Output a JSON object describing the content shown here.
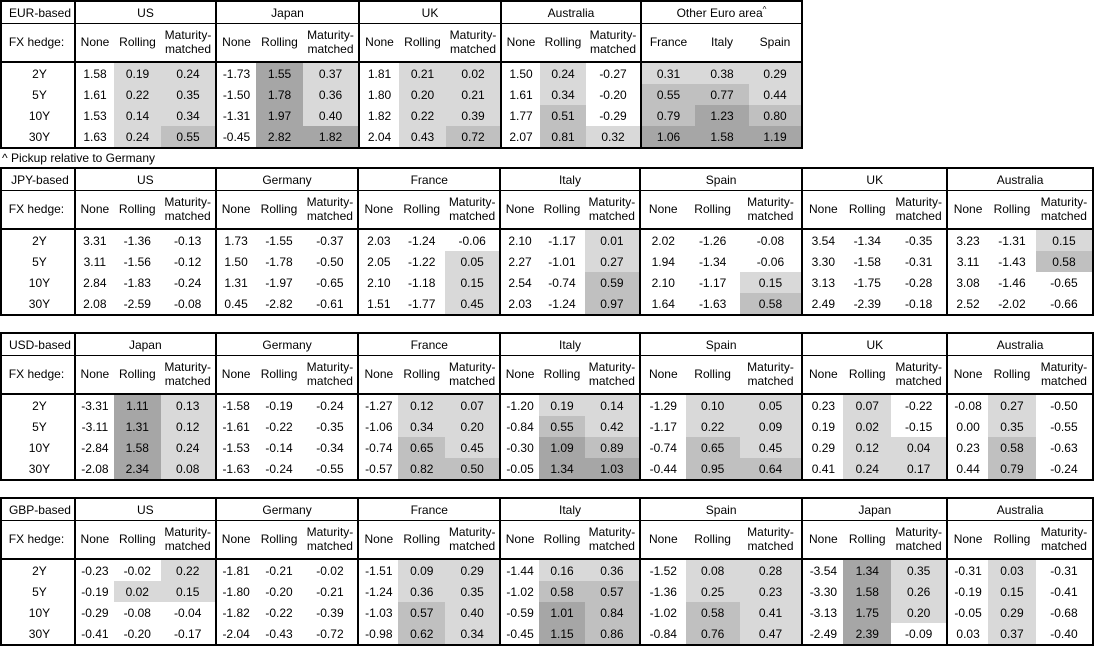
{
  "footnote": "^ Pickup relative to Germany",
  "fx_hedge_label": "FX hedge:",
  "hedge_columns": [
    "None",
    "Rolling",
    "Maturity-matched"
  ],
  "tenors": [
    "2Y",
    "5Y",
    "10Y",
    "30Y"
  ],
  "shading": {
    "none": "#FFFFFF",
    "light": "#D9D9D9",
    "medium": "#C0C0C0",
    "dark": "#A6A6A6",
    "rule": "hedged/pickup columns only: value<=0 white, 0<v<0.5 light, 0.5<=v<1 medium, v>=1 dark"
  },
  "tables": [
    {
      "base": "EUR-based",
      "sections": [
        {
          "country": "US",
          "type": "hedge",
          "rows": [
            [
              1.58,
              0.19,
              0.24
            ],
            [
              1.61,
              0.22,
              0.35
            ],
            [
              1.53,
              0.14,
              0.34
            ],
            [
              1.63,
              0.24,
              0.55
            ]
          ]
        },
        {
          "country": "Japan",
          "type": "hedge",
          "rows": [
            [
              -1.73,
              1.55,
              0.37
            ],
            [
              -1.5,
              1.78,
              0.36
            ],
            [
              -1.31,
              1.97,
              0.4
            ],
            [
              -0.45,
              2.82,
              1.82
            ]
          ]
        },
        {
          "country": "UK",
          "type": "hedge",
          "rows": [
            [
              1.81,
              0.21,
              0.02
            ],
            [
              1.8,
              0.2,
              0.21
            ],
            [
              1.82,
              0.22,
              0.39
            ],
            [
              2.04,
              0.43,
              0.72
            ]
          ]
        },
        {
          "country": "Australia",
          "type": "hedge",
          "rows": [
            [
              1.5,
              0.24,
              -0.27
            ],
            [
              1.61,
              0.34,
              -0.2
            ],
            [
              1.77,
              0.51,
              -0.29
            ],
            [
              2.07,
              0.81,
              0.32
            ]
          ]
        },
        {
          "country": "Other Euro area",
          "sup": "^",
          "type": "pickup",
          "subcols": [
            "France",
            "Italy",
            "Spain"
          ],
          "rows": [
            [
              0.31,
              0.38,
              0.29
            ],
            [
              0.55,
              0.77,
              0.44
            ],
            [
              0.79,
              1.23,
              0.8
            ],
            [
              1.06,
              1.58,
              1.19
            ]
          ]
        }
      ]
    },
    {
      "base": "JPY-based",
      "sections": [
        {
          "country": "US",
          "type": "hedge",
          "rows": [
            [
              3.31,
              -1.36,
              -0.13
            ],
            [
              3.11,
              -1.56,
              -0.12
            ],
            [
              2.84,
              -1.83,
              -0.24
            ],
            [
              2.08,
              -2.59,
              -0.08
            ]
          ]
        },
        {
          "country": "Germany",
          "type": "hedge",
          "rows": [
            [
              1.73,
              -1.55,
              -0.37
            ],
            [
              1.5,
              -1.78,
              -0.5
            ],
            [
              1.31,
              -1.97,
              -0.65
            ],
            [
              0.45,
              -2.82,
              -0.61
            ]
          ]
        },
        {
          "country": "France",
          "type": "hedge",
          "rows": [
            [
              2.03,
              -1.24,
              -0.06
            ],
            [
              2.05,
              -1.22,
              0.05
            ],
            [
              2.1,
              -1.18,
              0.15
            ],
            [
              1.51,
              -1.77,
              0.45
            ]
          ]
        },
        {
          "country": "Italy",
          "type": "hedge",
          "rows": [
            [
              2.1,
              -1.17,
              0.01
            ],
            [
              2.27,
              -1.01,
              0.27
            ],
            [
              2.54,
              -0.74,
              0.59
            ],
            [
              2.03,
              -1.24,
              0.97
            ]
          ]
        },
        {
          "country": "Spain",
          "type": "hedge",
          "rows": [
            [
              2.02,
              -1.26,
              -0.08
            ],
            [
              1.94,
              -1.34,
              -0.06
            ],
            [
              2.1,
              -1.17,
              0.15
            ],
            [
              1.64,
              -1.63,
              0.58
            ]
          ]
        },
        {
          "country": "UK",
          "type": "hedge",
          "rows": [
            [
              3.54,
              -1.34,
              -0.35
            ],
            [
              3.3,
              -1.58,
              -0.31
            ],
            [
              3.13,
              -1.75,
              -0.28
            ],
            [
              2.49,
              -2.39,
              -0.18
            ]
          ]
        },
        {
          "country": "Australia",
          "type": "hedge",
          "rows": [
            [
              3.23,
              -1.31,
              0.15
            ],
            [
              3.11,
              -1.43,
              0.58
            ],
            [
              3.08,
              -1.46,
              -0.65
            ],
            [
              2.52,
              -2.02,
              -0.66
            ]
          ]
        }
      ]
    },
    {
      "base": "USD-based",
      "sections": [
        {
          "country": "Japan",
          "type": "hedge",
          "rows": [
            [
              -3.31,
              1.11,
              0.13
            ],
            [
              -3.11,
              1.31,
              0.12
            ],
            [
              -2.84,
              1.58,
              0.24
            ],
            [
              -2.08,
              2.34,
              0.08
            ]
          ]
        },
        {
          "country": "Germany",
          "type": "hedge",
          "rows": [
            [
              -1.58,
              -0.19,
              -0.24
            ],
            [
              -1.61,
              -0.22,
              -0.35
            ],
            [
              -1.53,
              -0.14,
              -0.34
            ],
            [
              -1.63,
              -0.24,
              -0.55
            ]
          ]
        },
        {
          "country": "France",
          "type": "hedge",
          "rows": [
            [
              -1.27,
              0.12,
              0.07
            ],
            [
              -1.06,
              0.34,
              0.2
            ],
            [
              -0.74,
              0.65,
              0.45
            ],
            [
              -0.57,
              0.82,
              0.5
            ]
          ]
        },
        {
          "country": "Italy",
          "type": "hedge",
          "rows": [
            [
              -1.2,
              0.19,
              0.14
            ],
            [
              -0.84,
              0.55,
              0.42
            ],
            [
              -0.3,
              1.09,
              0.89
            ],
            [
              -0.05,
              1.34,
              1.03
            ]
          ]
        },
        {
          "country": "Spain",
          "type": "hedge",
          "rows": [
            [
              -1.29,
              0.1,
              0.05
            ],
            [
              -1.17,
              0.22,
              0.09
            ],
            [
              -0.74,
              0.65,
              0.45
            ],
            [
              -0.44,
              0.95,
              0.64
            ]
          ]
        },
        {
          "country": "UK",
          "type": "hedge",
          "rows": [
            [
              0.23,
              0.07,
              -0.22
            ],
            [
              0.19,
              0.02,
              -0.15
            ],
            [
              0.29,
              0.12,
              0.04
            ],
            [
              0.41,
              0.24,
              0.17
            ]
          ]
        },
        {
          "country": "Australia",
          "type": "hedge",
          "rows": [
            [
              -0.08,
              0.27,
              -0.5
            ],
            [
              0.0,
              0.35,
              -0.55
            ],
            [
              0.23,
              0.58,
              -0.63
            ],
            [
              0.44,
              0.79,
              -0.24
            ]
          ]
        }
      ]
    },
    {
      "base": "GBP-based",
      "sections": [
        {
          "country": "US",
          "type": "hedge",
          "rows": [
            [
              -0.23,
              -0.02,
              0.22
            ],
            [
              -0.19,
              0.02,
              0.15
            ],
            [
              -0.29,
              -0.08,
              -0.04
            ],
            [
              -0.41,
              -0.2,
              -0.17
            ]
          ]
        },
        {
          "country": "Germany",
          "type": "hedge",
          "rows": [
            [
              -1.81,
              -0.21,
              -0.02
            ],
            [
              -1.8,
              -0.2,
              -0.21
            ],
            [
              -1.82,
              -0.22,
              -0.39
            ],
            [
              -2.04,
              -0.43,
              -0.72
            ]
          ]
        },
        {
          "country": "France",
          "type": "hedge",
          "rows": [
            [
              -1.51,
              0.09,
              0.29
            ],
            [
              -1.24,
              0.36,
              0.35
            ],
            [
              -1.03,
              0.57,
              0.4
            ],
            [
              -0.98,
              0.62,
              0.34
            ]
          ]
        },
        {
          "country": "Italy",
          "type": "hedge",
          "rows": [
            [
              -1.44,
              0.16,
              0.36
            ],
            [
              -1.02,
              0.58,
              0.57
            ],
            [
              -0.59,
              1.01,
              0.84
            ],
            [
              -0.45,
              1.15,
              0.86
            ]
          ]
        },
        {
          "country": "Spain",
          "type": "hedge",
          "rows": [
            [
              -1.52,
              0.08,
              0.28
            ],
            [
              -1.36,
              0.25,
              0.23
            ],
            [
              -1.02,
              0.58,
              0.41
            ],
            [
              -0.84,
              0.76,
              0.47
            ]
          ]
        },
        {
          "country": "Japan",
          "type": "hedge",
          "rows": [
            [
              -3.54,
              1.34,
              0.35
            ],
            [
              -3.3,
              1.58,
              0.26
            ],
            [
              -3.13,
              1.75,
              0.2
            ],
            [
              -2.49,
              2.39,
              -0.09
            ]
          ]
        },
        {
          "country": "Australia",
          "type": "hedge",
          "rows": [
            [
              -0.31,
              0.03,
              -0.31
            ],
            [
              -0.19,
              0.15,
              -0.41
            ],
            [
              -0.05,
              0.29,
              -0.68
            ],
            [
              0.03,
              0.37,
              -0.4
            ]
          ]
        }
      ]
    }
  ]
}
